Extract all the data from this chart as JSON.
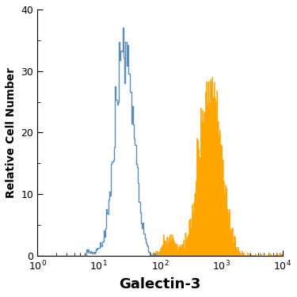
{
  "title": "",
  "xlabel": "Galectin-3",
  "ylabel": "Relative Cell Number",
  "xlim": [
    1,
    10000
  ],
  "ylim": [
    0,
    40
  ],
  "yticks": [
    0,
    10,
    20,
    30,
    40
  ],
  "xlabel_fontsize": 13,
  "ylabel_fontsize": 10,
  "tick_fontsize": 9,
  "open_color": "#5b8db8",
  "filled_color": "#FFA500",
  "background_color": "#ffffff",
  "open_peak_log": 1.42,
  "open_log_std": 0.15,
  "open_peak_height": 37,
  "filled_peak_log": 2.82,
  "filled_log_std": 0.18,
  "filled_peak_height": 29,
  "n_bins": 256
}
